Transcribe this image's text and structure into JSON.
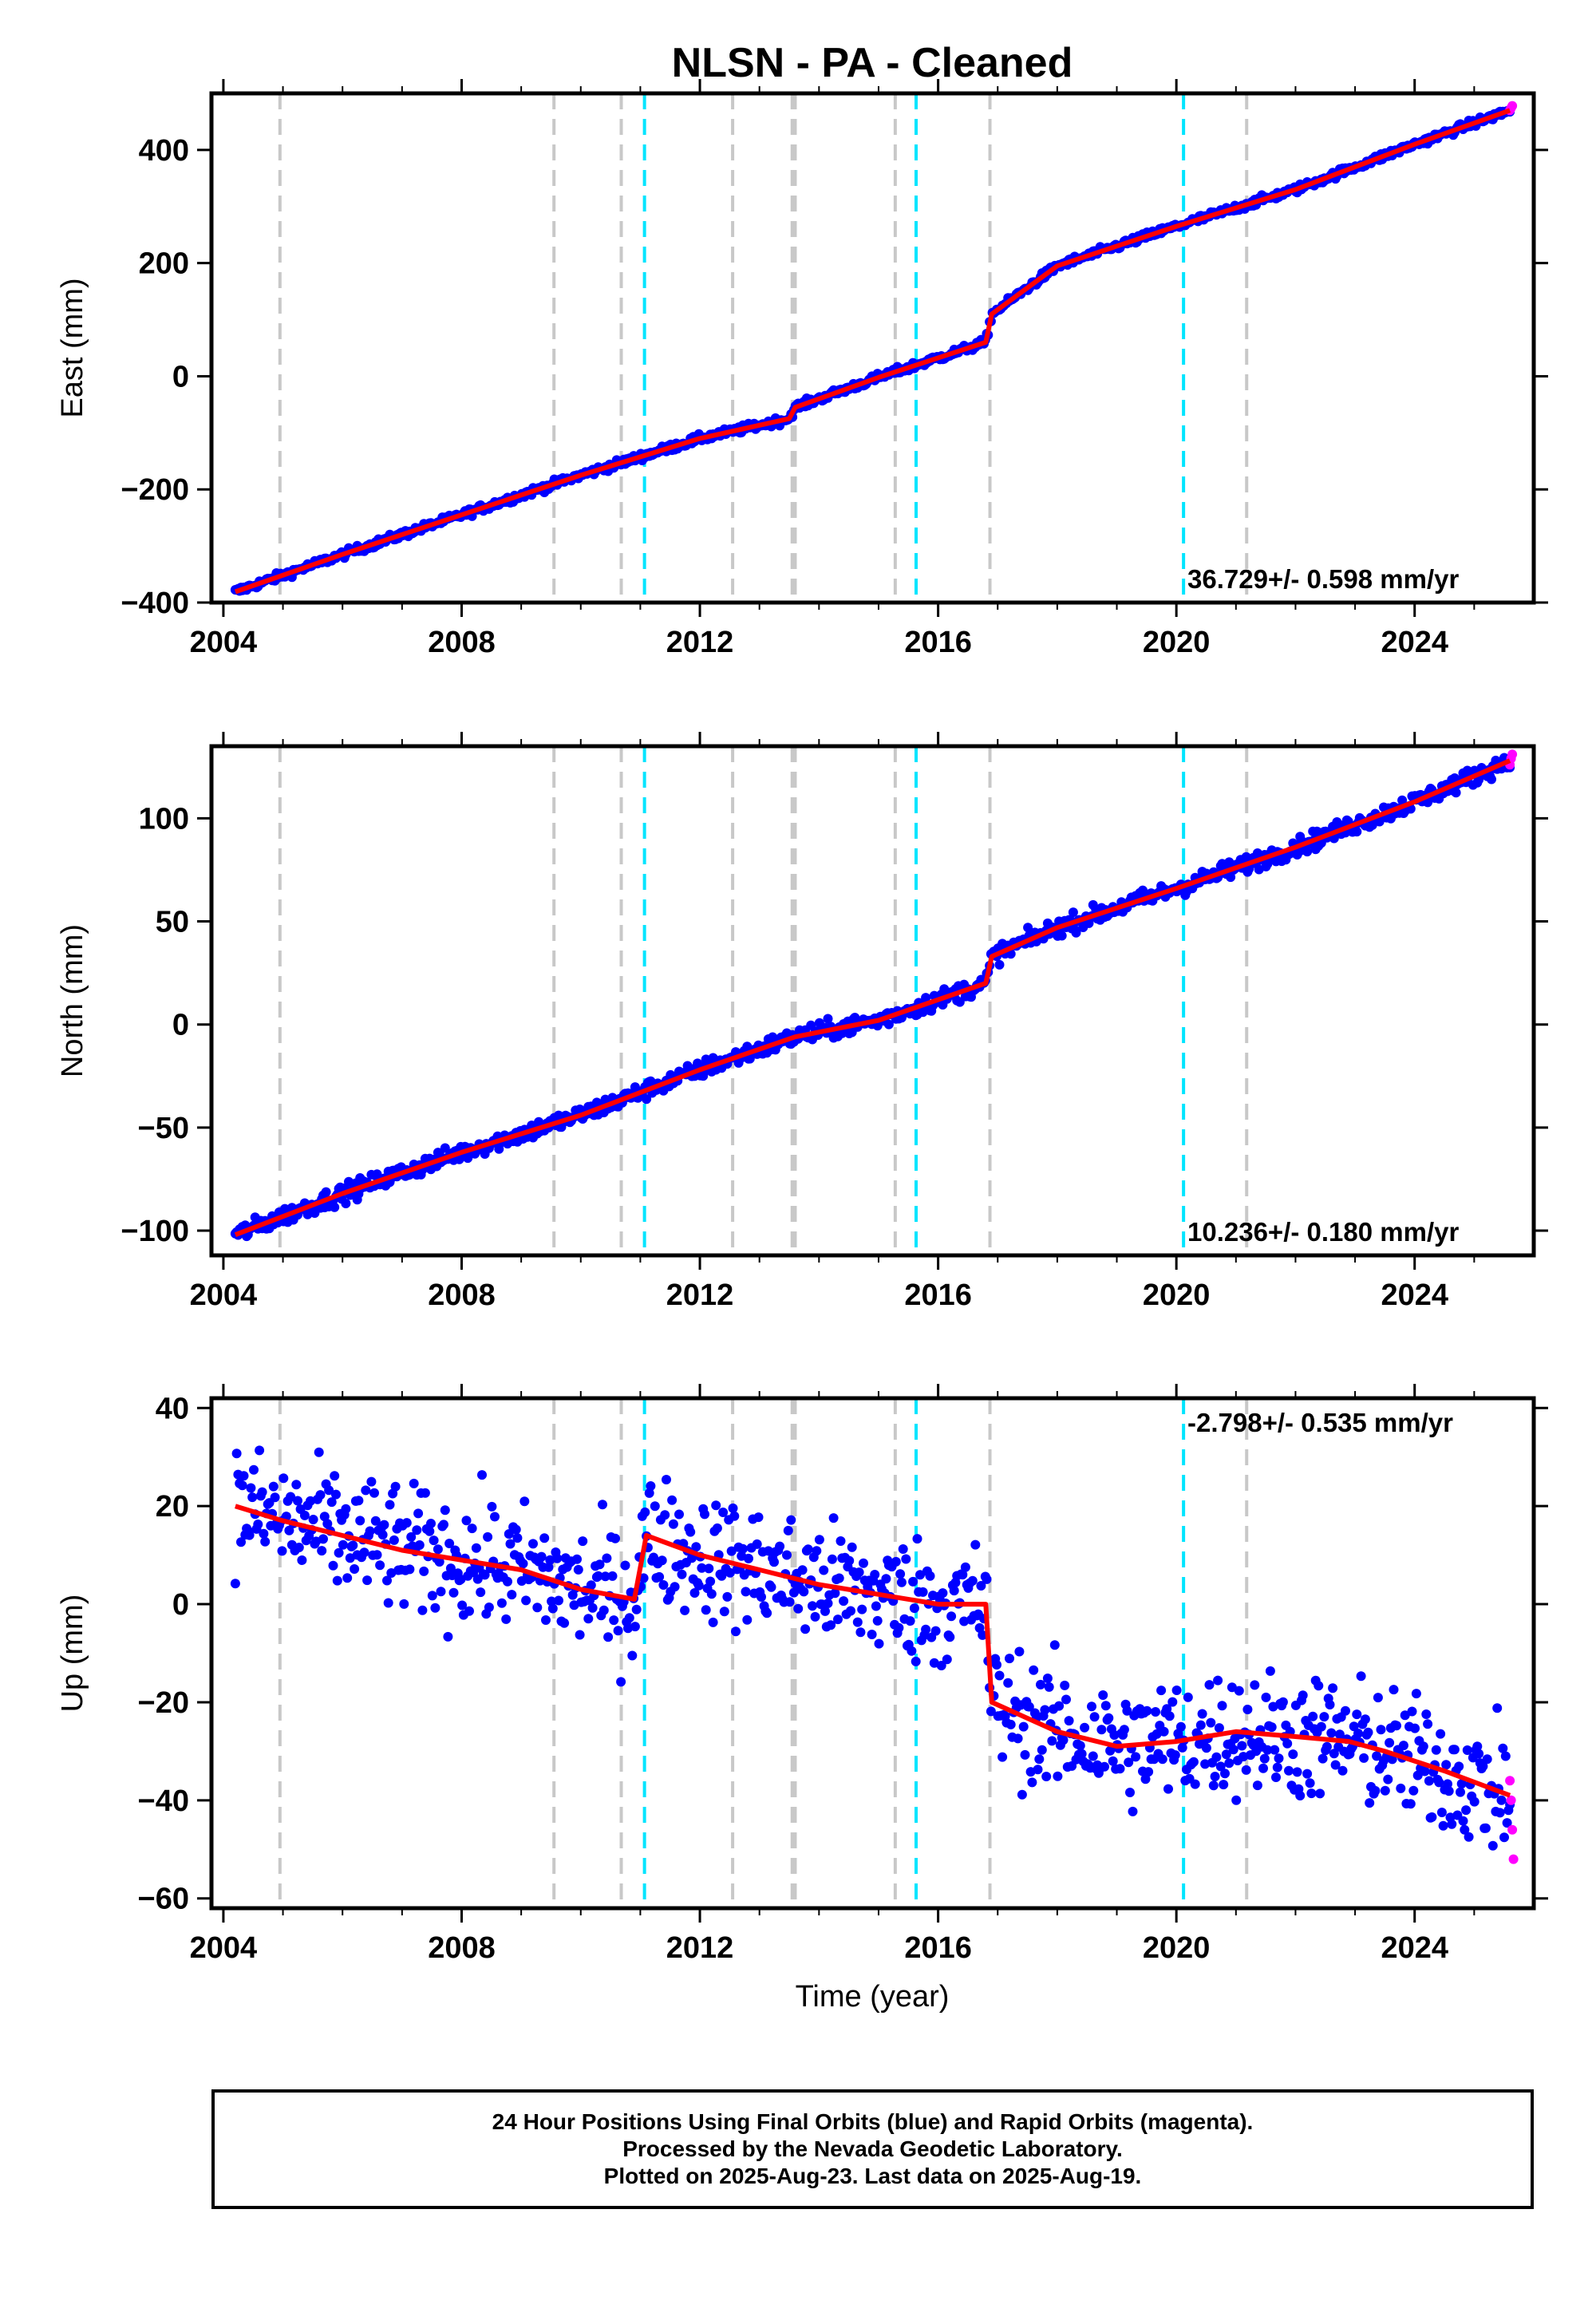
{
  "title": "NLSN  - PA - Cleaned",
  "xlabel": "Time (year)",
  "footer": {
    "line1": "24 Hour Positions Using Final Orbits (blue) and Rapid Orbits (magenta).",
    "line2": "Processed by the Nevada Geodetic Laboratory.",
    "line3": "Plotted on 2025-Aug-23. Last data on 2025-Aug-19."
  },
  "colors": {
    "final_orbits": "#0000ff",
    "rapid_orbits": "#ff00ff",
    "model": "#ff0000",
    "equipment_change": "#c8c8c8",
    "earthquake": "#00e5ff"
  },
  "chart_data": [
    {
      "type": "scatter",
      "name": "east",
      "ylabel": "East (mm)",
      "xlim": [
        2003.8,
        2026.0
      ],
      "ylim": [
        -400,
        500
      ],
      "x_ticks": [
        2004,
        2008,
        2012,
        2016,
        2020,
        2024
      ],
      "y_ticks": [
        -400,
        -200,
        0,
        200,
        400
      ],
      "rate_label": "36.729+/- 0.598 mm/yr",
      "rate_position": "bottom-right",
      "grid": false,
      "series": [
        {
          "role": "final",
          "x": [
            2004.2,
            2006.0,
            2008.0,
            2010.0,
            2012.0,
            2013.5,
            2013.6,
            2015.0,
            2016.8,
            2016.9,
            2018.0,
            2020.0,
            2022.0,
            2024.0,
            2025.6
          ],
          "y": [
            -381,
            -315,
            -245,
            -175,
            -110,
            -75,
            -55,
            -2,
            60,
            110,
            195,
            265,
            330,
            410,
            470
          ]
        },
        {
          "role": "rapid",
          "x": [
            2025.6,
            2025.62,
            2025.64
          ],
          "y": [
            470,
            474,
            478
          ]
        },
        {
          "role": "model",
          "x": [
            2004.2,
            2006.0,
            2008.0,
            2010.0,
            2012.0,
            2013.5,
            2013.6,
            2015.0,
            2016.8,
            2016.9,
            2018.0,
            2020.0,
            2022.0,
            2024.0,
            2025.6
          ],
          "y": [
            -381,
            -315,
            -245,
            -175,
            -110,
            -75,
            -55,
            -2,
            60,
            110,
            195,
            265,
            330,
            410,
            470
          ]
        }
      ]
    },
    {
      "type": "scatter",
      "name": "north",
      "ylabel": "North (mm)",
      "xlim": [
        2003.8,
        2026.0
      ],
      "ylim": [
        -112,
        135
      ],
      "x_ticks": [
        2004,
        2008,
        2012,
        2016,
        2020,
        2024
      ],
      "y_ticks": [
        -100,
        -50,
        0,
        50,
        100
      ],
      "rate_label": "10.236+/- 0.180 mm/yr",
      "rate_position": "bottom-right",
      "grid": false,
      "series": [
        {
          "role": "final",
          "x": [
            2004.2,
            2006.0,
            2008.0,
            2010.0,
            2012.0,
            2013.6,
            2015.0,
            2016.8,
            2016.9,
            2018.0,
            2020.0,
            2022.0,
            2024.0,
            2025.6
          ],
          "y": [
            -102,
            -82,
            -62,
            -44,
            -22,
            -6,
            2,
            20,
            33,
            47,
            66,
            86,
            108,
            128
          ]
        },
        {
          "role": "rapid",
          "x": [
            2025.6,
            2025.62,
            2025.64
          ],
          "y": [
            126,
            129,
            131
          ]
        },
        {
          "role": "model",
          "x": [
            2004.2,
            2006.0,
            2008.0,
            2010.0,
            2012.0,
            2013.6,
            2015.0,
            2016.8,
            2016.9,
            2018.0,
            2020.0,
            2022.0,
            2024.0,
            2025.6
          ],
          "y": [
            -102,
            -82,
            -62,
            -44,
            -22,
            -6,
            2,
            20,
            33,
            47,
            66,
            86,
            108,
            128
          ]
        }
      ]
    },
    {
      "type": "scatter",
      "name": "up",
      "ylabel": "Up (mm)",
      "xlim": [
        2003.8,
        2026.0
      ],
      "ylim": [
        -62,
        42
      ],
      "x_ticks": [
        2004,
        2008,
        2012,
        2016,
        2020,
        2024
      ],
      "y_ticks": [
        -60,
        -40,
        -20,
        0,
        20,
        40
      ],
      "rate_label": "-2.798+/- 0.535 mm/yr",
      "rate_position": "top-right",
      "grid": false,
      "series": [
        {
          "role": "final",
          "x": [
            2004.2,
            2005.0,
            2006.0,
            2007.0,
            2008.0,
            2009.0,
            2010.0,
            2010.9,
            2011.1,
            2012.0,
            2013.0,
            2014.0,
            2015.0,
            2016.0,
            2016.8,
            2016.9,
            2018.0,
            2019.0,
            2020.0,
            2021.0,
            2022.0,
            2022.9,
            2023.5,
            2024.5,
            2025.6
          ],
          "y": [
            20,
            17,
            14,
            11,
            9,
            7,
            3,
            1,
            14,
            10,
            7,
            4,
            2,
            0,
            0,
            -20,
            -26,
            -29,
            -28,
            -26,
            -27,
            -28,
            -30,
            -34,
            -39
          ]
        },
        {
          "role": "rapid",
          "x": [
            2025.6,
            2025.62,
            2025.64,
            2025.66
          ],
          "y": [
            -36,
            -40,
            -46,
            -52
          ]
        },
        {
          "role": "model",
          "x": [
            2004.2,
            2005.0,
            2006.0,
            2007.0,
            2008.0,
            2009.0,
            2010.0,
            2010.9,
            2011.1,
            2012.0,
            2013.0,
            2014.0,
            2015.0,
            2016.0,
            2016.8,
            2016.9,
            2018.0,
            2019.0,
            2020.0,
            2021.0,
            2022.0,
            2022.9,
            2023.5,
            2024.5,
            2025.6
          ],
          "y": [
            20,
            17,
            14,
            11,
            9,
            7,
            3,
            1,
            14,
            10,
            7,
            4,
            2,
            0,
            0,
            -20,
            -26,
            -29,
            -28,
            -26,
            -27,
            -28,
            -30,
            -34,
            -39
          ]
        }
      ]
    }
  ],
  "events": {
    "equipment_change": [
      2004.95,
      2009.55,
      2010.68,
      2012.55,
      2013.55,
      2013.6,
      2015.28,
      2016.87,
      2021.18
    ],
    "earthquake": [
      2011.07,
      2015.63,
      2020.12
    ]
  }
}
